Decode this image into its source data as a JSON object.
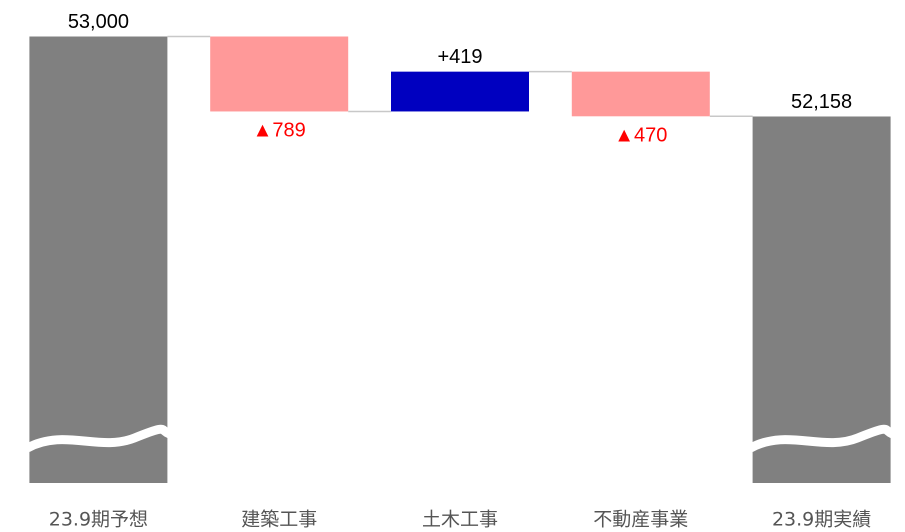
{
  "chart_data": {
    "type": "waterfall",
    "categories": [
      "23.9期予想",
      "建築工事",
      "土木工事",
      "不動産事業",
      "23.9期実績"
    ],
    "measures": [
      "absolute",
      "relative",
      "relative",
      "relative",
      "absolute"
    ],
    "values": [
      53000,
      -789,
      419,
      -470,
      52158
    ],
    "value_labels": [
      "53,000",
      "▲789",
      "+419",
      "▲470",
      "52,158"
    ],
    "colors": [
      "#808080",
      "#ff9999",
      "#0000c0",
      "#ff9999",
      "#808080"
    ],
    "label_colors": [
      "#000000",
      "#ff0000",
      "#000000",
      "#ff0000",
      "#000000"
    ],
    "ylim": [
      48300,
      53300
    ],
    "axis_break": true
  }
}
